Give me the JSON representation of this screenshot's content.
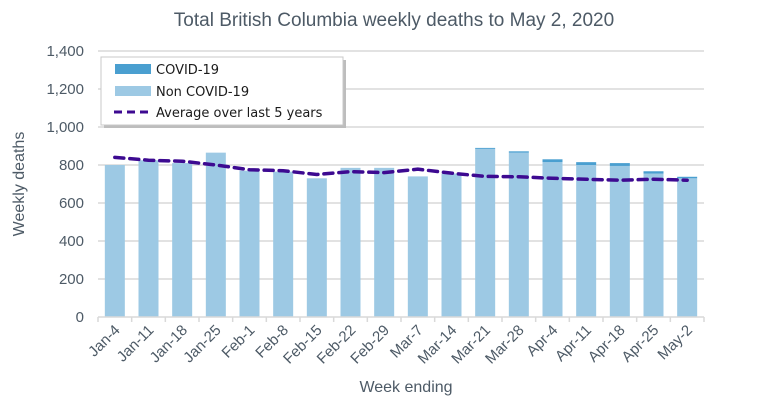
{
  "chart_data": {
    "type": "bar",
    "stacked": true,
    "title": "Total British Columbia weekly deaths to May 2, 2020",
    "xlabel": "Week ending",
    "ylabel": "Weekly deaths",
    "ylim": [
      0,
      1400
    ],
    "yticks": [
      0,
      200,
      400,
      600,
      800,
      1000,
      1200,
      1400
    ],
    "ytick_labels": [
      "0",
      "200",
      "400",
      "600",
      "800",
      "1,000",
      "1,200",
      "1,400"
    ],
    "grid": true,
    "legend_position": "top-left",
    "categories": [
      "Jan-4",
      "Jan-11",
      "Jan-18",
      "Jan-25",
      "Feb-1",
      "Feb-8",
      "Feb-15",
      "Feb-22",
      "Feb-29",
      "Mar-7",
      "Mar-14",
      "Mar-21",
      "Mar-28",
      "Apr-4",
      "Apr-11",
      "Apr-18",
      "Apr-25",
      "May-2"
    ],
    "series": [
      {
        "name": "Non COVID-19",
        "kind": "bar",
        "color": "#9dc9e4",
        "values": [
          800,
          825,
          810,
          865,
          770,
          765,
          730,
          785,
          785,
          740,
          755,
          885,
          865,
          815,
          800,
          795,
          755,
          730
        ]
      },
      {
        "name": "COVID-19",
        "kind": "bar",
        "color": "#4a9fd0",
        "values": [
          0,
          0,
          0,
          0,
          0,
          0,
          0,
          0,
          0,
          0,
          0,
          5,
          7,
          15,
          15,
          15,
          12,
          8
        ]
      },
      {
        "name": "Average over last 5 years",
        "kind": "line",
        "style": "dashed",
        "color": "#3d0a91",
        "values": [
          840,
          825,
          820,
          800,
          775,
          770,
          750,
          765,
          760,
          778,
          757,
          740,
          738,
          730,
          725,
          720,
          725,
          720
        ]
      }
    ],
    "legend": [
      {
        "label": "COVID-19",
        "symbol": "bar",
        "color": "#4a9fd0"
      },
      {
        "label": "Non COVID-19",
        "symbol": "bar",
        "color": "#9dc9e4"
      },
      {
        "label": "Average over last 5 years",
        "symbol": "dashed-line",
        "color": "#3d0a91"
      }
    ]
  }
}
